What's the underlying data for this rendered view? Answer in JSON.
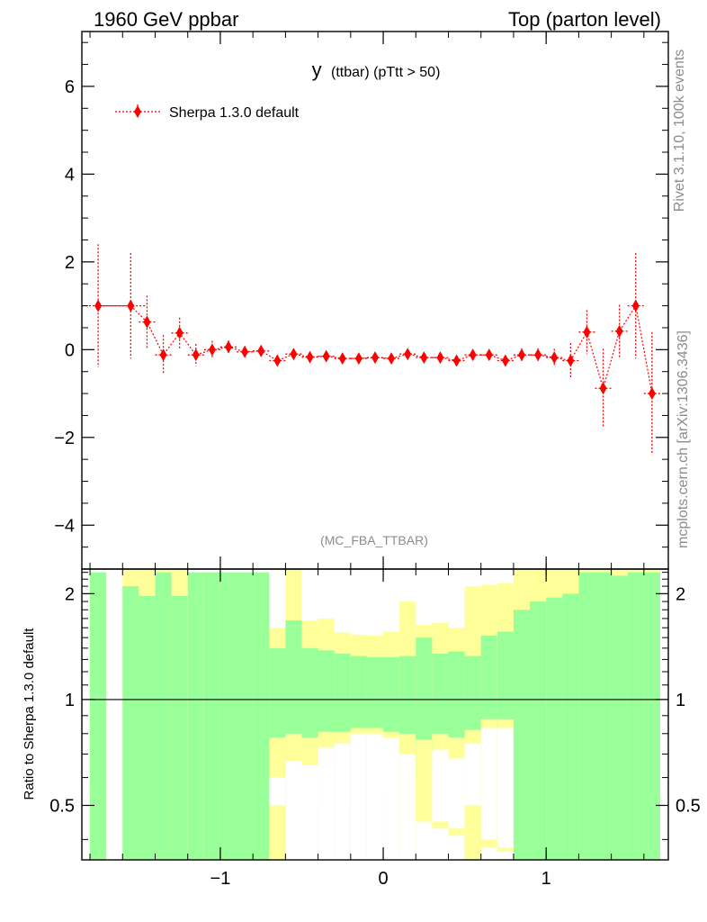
{
  "header": {
    "left": "1960 GeV ppbar",
    "right": "Top (parton level)"
  },
  "side_labels": {
    "rivet": "Rivet 3.1.10,  100k events",
    "mcplots": "mcplots.cern.ch [arXiv:1306.3436]"
  },
  "watermark": "(MC_FBA_TTBAR)",
  "chart_data": [
    {
      "type": "scatter",
      "title": "y (ttbar) (pTtt > 50)",
      "title_main": "y",
      "title_sub": "(ttbar) (pTtt > 50)",
      "xlim": [
        -1.85,
        1.75
      ],
      "ylim": [
        -5.0,
        7.25
      ],
      "yticks": [
        -4,
        -2,
        0,
        2,
        4,
        6
      ],
      "yticklabels": [
        "−4",
        "−2",
        "0",
        "2",
        "4",
        "6"
      ],
      "legend": {
        "label": "Sherpa 1.3.0 default",
        "placement": "top-left"
      },
      "marker_color": "#ff0000",
      "series": [
        {
          "name": "Sherpa 1.3.0 default",
          "x": [
            -1.75,
            -1.55,
            -1.45,
            -1.35,
            -1.25,
            -1.15,
            -1.05,
            -0.95,
            -0.85,
            -0.75,
            -0.65,
            -0.55,
            -0.45,
            -0.35,
            -0.25,
            -0.15,
            -0.05,
            0.05,
            0.15,
            0.25,
            0.35,
            0.45,
            0.55,
            0.65,
            0.75,
            0.85,
            0.95,
            1.05,
            1.15,
            1.25,
            1.35,
            1.45,
            1.55,
            1.65
          ],
          "xerr": [
            0.1,
            0.1,
            0.05,
            0.05,
            0.05,
            0.05,
            0.05,
            0.05,
            0.05,
            0.05,
            0.05,
            0.05,
            0.05,
            0.05,
            0.05,
            0.05,
            0.05,
            0.05,
            0.05,
            0.05,
            0.05,
            0.05,
            0.05,
            0.05,
            0.05,
            0.05,
            0.05,
            0.05,
            0.05,
            0.05,
            0.05,
            0.05,
            0.05,
            0.05
          ],
          "y": [
            1.0,
            1.0,
            0.63,
            -0.12,
            0.38,
            -0.12,
            0.0,
            0.06,
            -0.05,
            -0.03,
            -0.25,
            -0.1,
            -0.17,
            -0.15,
            -0.2,
            -0.2,
            -0.18,
            -0.2,
            -0.1,
            -0.18,
            -0.18,
            -0.25,
            -0.12,
            -0.12,
            -0.25,
            -0.12,
            -0.12,
            -0.18,
            -0.25,
            0.4,
            -0.88,
            0.42,
            1.0,
            -1.0
          ],
          "yerr": [
            1.4,
            1.2,
            0.6,
            0.45,
            0.35,
            0.25,
            0.2,
            0.15,
            0.12,
            0.12,
            0.12,
            0.1,
            0.1,
            0.1,
            0.1,
            0.1,
            0.1,
            0.1,
            0.1,
            0.1,
            0.1,
            0.1,
            0.1,
            0.1,
            0.1,
            0.15,
            0.15,
            0.2,
            0.4,
            0.5,
            0.9,
            0.6,
            1.2,
            1.4
          ]
        }
      ]
    },
    {
      "type": "area",
      "ylabel": "Ratio to Sherpa 1.3.0 default",
      "xlim": [
        -1.85,
        1.75
      ],
      "ylim": [
        0.35,
        2.35
      ],
      "reference_line": 1,
      "xticks": [
        -1,
        0,
        1
      ],
      "xticklabels": [
        "−1",
        "0",
        "1"
      ],
      "yticks": [
        0.5,
        1,
        2
      ],
      "yticklabels": [
        "0.5",
        "1",
        "2"
      ],
      "colors": {
        "inner_band": "#99ff99",
        "outer_band": "#ffff99",
        "reference_line": "#000000"
      },
      "bins": {
        "lo": [
          -1.8,
          -1.6,
          -1.5,
          -1.4,
          -1.3,
          -1.2,
          -1.1,
          -1.0,
          -0.9,
          -0.8,
          -0.7,
          -0.6,
          -0.5,
          -0.4,
          -0.3,
          -0.2,
          -0.1,
          0.0,
          0.1,
          0.2,
          0.3,
          0.4,
          0.5,
          0.6,
          0.7,
          0.8,
          0.9,
          1.0,
          1.1,
          1.2,
          1.3,
          1.4,
          1.5,
          1.6
        ],
        "hi": [
          -1.7,
          -1.5,
          -1.4,
          -1.3,
          -1.2,
          -1.1,
          -1.0,
          -0.9,
          -0.8,
          -0.7,
          -0.6,
          -0.5,
          -0.4,
          -0.3,
          -0.2,
          -0.1,
          0.0,
          0.1,
          0.2,
          0.3,
          0.4,
          0.5,
          0.6,
          0.7,
          0.8,
          0.9,
          1.0,
          1.1,
          1.2,
          1.3,
          1.4,
          1.5,
          1.6,
          1.7
        ],
        "inner_lo": [
          0.35,
          0.35,
          0.35,
          0.35,
          0.35,
          0.35,
          0.35,
          0.35,
          0.35,
          0.35,
          0.5,
          0.35,
          0.35,
          0.35,
          0.35,
          0.35,
          0.35,
          0.35,
          0.35,
          0.6,
          0.45,
          0.43,
          0.5,
          0.4,
          0.38,
          0.35,
          0.35,
          0.35,
          0.35,
          0.35,
          0.35,
          0.35,
          0.35,
          0.35
        ],
        "inner_hi": [
          2.3,
          2.1,
          1.97,
          2.3,
          1.97,
          2.3,
          2.3,
          2.3,
          2.3,
          2.3,
          1.4,
          1.68,
          1.4,
          1.38,
          1.35,
          1.33,
          1.32,
          1.32,
          1.33,
          1.5,
          1.35,
          1.37,
          1.33,
          1.52,
          1.56,
          1.8,
          1.9,
          1.95,
          2.0,
          2.3,
          2.3,
          2.25,
          2.3,
          2.3
        ],
        "outer_lo": [
          0.35,
          0.35,
          0.35,
          0.35,
          0.35,
          0.35,
          0.35,
          0.35,
          0.35,
          0.35,
          0.35,
          0.35,
          0.35,
          0.35,
          0.35,
          0.35,
          0.35,
          0.35,
          0.35,
          0.35,
          0.35,
          0.35,
          0.35,
          0.35,
          0.35,
          0.35,
          0.35,
          0.35,
          0.35,
          0.35,
          0.35,
          0.35,
          0.35,
          0.35
        ],
        "outer_hi": [
          2.3,
          2.35,
          2.35,
          2.35,
          2.35,
          2.3,
          2.3,
          2.3,
          2.3,
          2.3,
          1.6,
          2.35,
          1.68,
          1.7,
          1.55,
          1.53,
          1.52,
          1.56,
          1.9,
          1.63,
          1.65,
          1.6,
          2.1,
          2.12,
          2.14,
          2.35,
          2.35,
          2.35,
          2.35,
          2.35,
          2.35,
          2.35,
          2.35,
          2.35
        ],
        "outer2_lo": [
          0.35,
          0.35,
          0.35,
          0.35,
          0.35,
          0.35,
          0.35,
          0.35,
          0.35,
          0.35,
          0.35,
          0.35,
          0.35,
          0.35,
          0.35,
          0.35,
          0.35,
          0.35,
          0.35,
          0.35,
          0.35,
          0.35,
          0.35,
          0.35,
          0.35,
          0.35,
          0.35,
          0.35,
          0.35,
          0.35,
          0.35,
          0.35,
          0.35,
          0.35
        ],
        "inner_lo_below1": [
          0.35,
          0.35,
          0.35,
          0.35,
          0.35,
          0.35,
          0.35,
          0.35,
          0.35,
          0.35,
          0.5,
          0.35,
          0.35,
          0.35,
          0.35,
          0.35,
          0.35,
          0.35,
          0.35,
          0.6,
          0.45,
          0.43,
          0.5,
          0.4,
          0.38,
          0.35,
          0.35,
          0.35,
          0.35,
          0.35,
          0.35,
          0.35,
          0.35,
          0.35
        ],
        "inner_hi_below1": [
          1,
          1,
          1,
          1,
          1,
          1,
          1,
          1,
          1,
          1,
          0.6,
          0.67,
          0.65,
          0.73,
          0.75,
          0.8,
          0.8,
          0.78,
          0.7,
          0.6,
          0.72,
          0.68,
          0.75,
          0.83,
          0.83,
          1,
          1,
          1,
          1,
          1,
          1,
          1,
          1,
          1
        ],
        "outer_lo_below1": [
          0.35,
          0.35,
          0.35,
          0.35,
          0.35,
          0.35,
          0.35,
          0.35,
          0.35,
          0.35,
          0.35,
          0.35,
          0.35,
          0.5,
          0.5,
          0.56,
          0.55,
          0.53,
          0.35,
          0.45,
          0.43,
          0.41,
          0.35,
          0.38,
          0.37,
          0.35,
          0.35,
          0.35,
          0.35,
          0.35,
          0.35,
          0.35,
          0.35,
          0.35
        ],
        "outer_hi_below1": [
          1,
          1,
          1,
          1,
          1,
          1,
          1,
          1,
          1,
          1,
          0.78,
          0.8,
          0.78,
          0.81,
          0.81,
          0.83,
          0.83,
          0.81,
          0.8,
          0.77,
          0.8,
          0.78,
          0.82,
          0.88,
          0.88,
          1,
          1,
          1,
          1,
          1,
          1,
          1,
          1,
          1
        ],
        "gap": [
          false,
          true,
          false,
          false,
          false,
          false,
          false,
          false,
          false,
          false,
          false,
          false,
          false,
          false,
          false,
          false,
          false,
          false,
          false,
          false,
          false,
          false,
          false,
          false,
          false,
          false,
          false,
          false,
          false,
          false,
          false,
          false,
          false,
          false
        ]
      }
    }
  ]
}
